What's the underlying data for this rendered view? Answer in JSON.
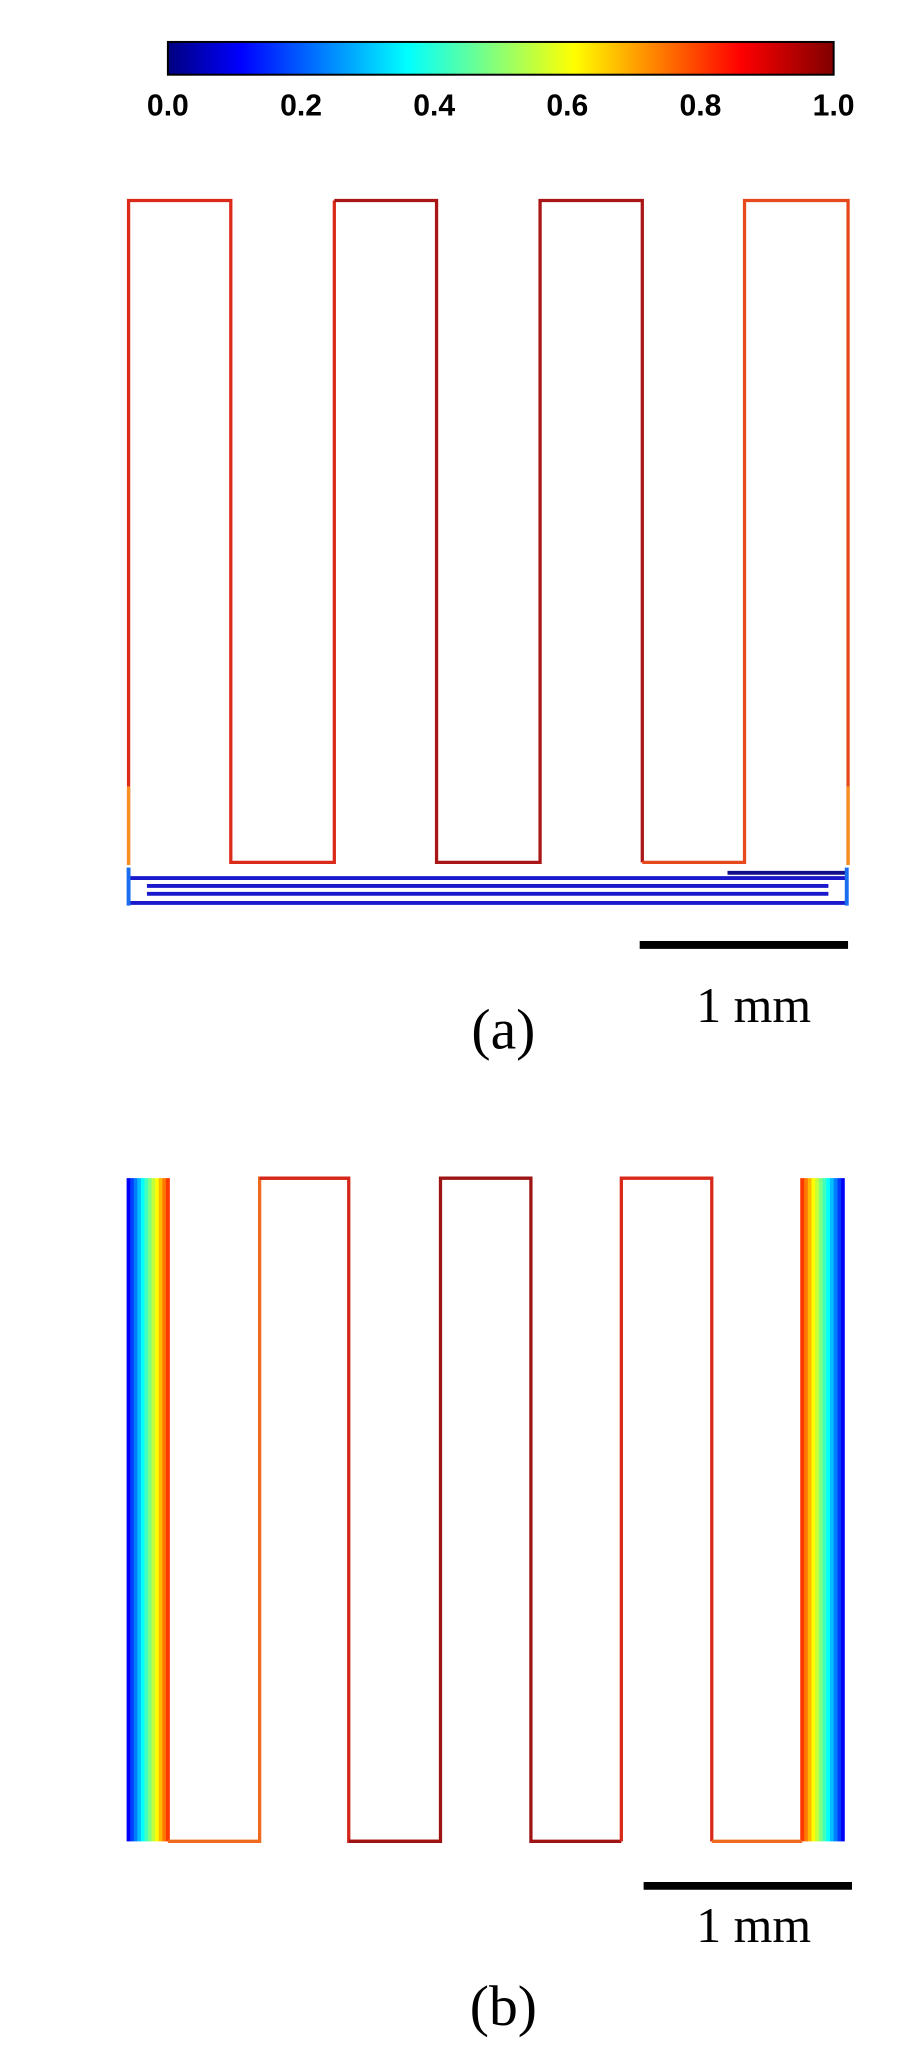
{
  "colorbar": {
    "ticks": [
      "0.0",
      "0.2",
      "0.4",
      "0.6",
      "0.8",
      "1.0"
    ]
  },
  "panels": [
    {
      "scale_bar": "1 mm",
      "caption": "(a)"
    },
    {
      "scale_bar": "1 mm",
      "caption": "(b)"
    }
  ]
}
